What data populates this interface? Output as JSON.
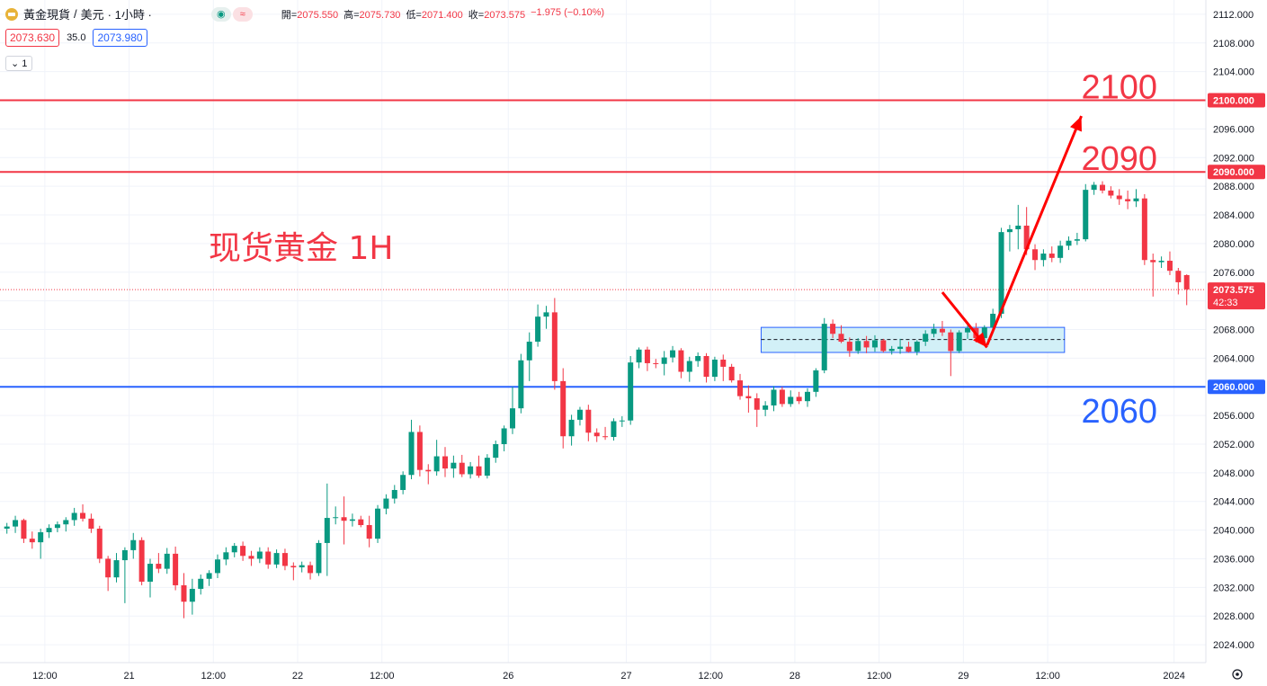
{
  "header": {
    "symbol": "黃金現貨",
    "separator": "/",
    "currency": "美元",
    "timeframe": "· 1小時 ·",
    "toggle1": "◉",
    "toggle2": "≈",
    "ohlc": {
      "open_label": "開=",
      "open": "2075.550",
      "high_label": "高=",
      "high": "2075.730",
      "low_label": "低=",
      "low": "2071.400",
      "close_label": "收=",
      "close": "2073.575",
      "change": "−1.975 (−0.10%)"
    },
    "bid": "2073.630",
    "spread": "35.0",
    "ask": "2073.980",
    "indicator_toggle": "⌄ 1"
  },
  "annotation": {
    "title": "现货黄金 1H",
    "label_2100": "2100",
    "label_2090": "2090",
    "label_2060": "2060"
  },
  "colors": {
    "up": "#089981",
    "down": "#f23645",
    "resistance": "#f23645",
    "support": "#2962ff",
    "zone_fill": "#cdeef6",
    "zone_border": "#2962ff",
    "arrow": "#ff0000"
  },
  "chart_data": {
    "type": "candlestick",
    "title": "现货黄金 1H",
    "y_axis": {
      "range": [
        2021.5,
        2114.0
      ],
      "ticks": [
        "2112.000",
        "2108.000",
        "2104.000",
        "2100.000",
        "2096.000",
        "2092.000",
        "2088.000",
        "2084.000",
        "2080.000",
        "2076.000",
        "2072.000",
        "2068.000",
        "2064.000",
        "2060.000",
        "2056.000",
        "2052.000",
        "2048.000",
        "2044.000",
        "2040.000",
        "2036.000",
        "2032.000",
        "2028.000",
        "2024.000"
      ]
    },
    "x_axis": {
      "labels": [
        "12:00",
        "21",
        "12:00",
        "22",
        "12:00",
        "26",
        "27",
        "12:00",
        "28",
        "12:00",
        "29",
        "12:00",
        "2024"
      ],
      "label_slots": [
        5,
        15,
        25,
        35,
        45,
        60,
        74,
        84,
        94,
        104,
        114,
        124,
        139
      ],
      "slot_range": [
        0,
        148
      ]
    },
    "horizontal_lines": [
      {
        "value": 2100.0,
        "label": "2100.000",
        "color": "#f23645"
      },
      {
        "value": 2090.0,
        "label": "2090.000",
        "color": "#f23645"
      },
      {
        "value": 2060.0,
        "label": "2060.000",
        "color": "#2962ff"
      }
    ],
    "last_price": {
      "value": 2073.575,
      "label": "2073.575",
      "countdown": "42:33"
    },
    "zone": {
      "top": 2068.3,
      "bottom": 2064.8,
      "mid": 2066.6,
      "slot_start": 90,
      "slot_end": 126
    },
    "projection_arrows": [
      {
        "from": [
          111.5,
          2073.2
        ],
        "to": [
          116.8,
          2065.5
        ]
      },
      {
        "from": [
          116.8,
          2065.8
        ],
        "to": [
          128,
          2097.8
        ]
      }
    ],
    "candles": [
      {
        "o": 2040.2,
        "h": 2041.0,
        "l": 2039.5,
        "c": 2040.5
      },
      {
        "o": 2040.5,
        "h": 2042.0,
        "l": 2039.6,
        "c": 2041.4
      },
      {
        "o": 2041.4,
        "h": 2041.6,
        "l": 2038.2,
        "c": 2038.8
      },
      {
        "o": 2038.8,
        "h": 2039.8,
        "l": 2037.4,
        "c": 2038.3
      },
      {
        "o": 2038.3,
        "h": 2040.2,
        "l": 2036.0,
        "c": 2039.7
      },
      {
        "o": 2039.7,
        "h": 2040.8,
        "l": 2038.9,
        "c": 2040.3
      },
      {
        "o": 2040.3,
        "h": 2041.2,
        "l": 2039.7,
        "c": 2040.8
      },
      {
        "o": 2040.8,
        "h": 2041.8,
        "l": 2039.8,
        "c": 2041.4
      },
      {
        "o": 2041.4,
        "h": 2043.1,
        "l": 2040.6,
        "c": 2042.4
      },
      {
        "o": 2042.4,
        "h": 2043.6,
        "l": 2041.2,
        "c": 2041.6
      },
      {
        "o": 2041.6,
        "h": 2042.3,
        "l": 2039.6,
        "c": 2040.2
      },
      {
        "o": 2040.2,
        "h": 2040.6,
        "l": 2035.4,
        "c": 2036.0
      },
      {
        "o": 2036.0,
        "h": 2036.4,
        "l": 2031.5,
        "c": 2033.4
      },
      {
        "o": 2033.4,
        "h": 2036.8,
        "l": 2032.7,
        "c": 2035.8
      },
      {
        "o": 2035.8,
        "h": 2037.6,
        "l": 2029.8,
        "c": 2037.2
      },
      {
        "o": 2037.2,
        "h": 2039.6,
        "l": 2036.0,
        "c": 2038.6
      },
      {
        "o": 2038.6,
        "h": 2039.0,
        "l": 2032.3,
        "c": 2032.8
      },
      {
        "o": 2032.8,
        "h": 2036.0,
        "l": 2030.6,
        "c": 2035.3
      },
      {
        "o": 2035.3,
        "h": 2036.8,
        "l": 2034.0,
        "c": 2034.6
      },
      {
        "o": 2034.6,
        "h": 2037.5,
        "l": 2033.9,
        "c": 2036.7
      },
      {
        "o": 2036.7,
        "h": 2037.7,
        "l": 2031.6,
        "c": 2032.3
      },
      {
        "o": 2032.3,
        "h": 2034.0,
        "l": 2027.7,
        "c": 2030.0
      },
      {
        "o": 2030.0,
        "h": 2033.2,
        "l": 2028.2,
        "c": 2031.8
      },
      {
        "o": 2031.8,
        "h": 2033.8,
        "l": 2031.0,
        "c": 2033.2
      },
      {
        "o": 2033.2,
        "h": 2034.4,
        "l": 2032.2,
        "c": 2034.0
      },
      {
        "o": 2034.0,
        "h": 2036.6,
        "l": 2033.3,
        "c": 2035.9
      },
      {
        "o": 2035.9,
        "h": 2037.6,
        "l": 2035.1,
        "c": 2036.9
      },
      {
        "o": 2036.9,
        "h": 2038.2,
        "l": 2036.2,
        "c": 2037.8
      },
      {
        "o": 2037.8,
        "h": 2038.4,
        "l": 2035.7,
        "c": 2036.4
      },
      {
        "o": 2036.4,
        "h": 2037.1,
        "l": 2035.0,
        "c": 2036.0
      },
      {
        "o": 2036.0,
        "h": 2037.6,
        "l": 2035.4,
        "c": 2037.0
      },
      {
        "o": 2037.0,
        "h": 2037.6,
        "l": 2034.6,
        "c": 2035.2
      },
      {
        "o": 2035.2,
        "h": 2037.3,
        "l": 2034.7,
        "c": 2036.8
      },
      {
        "o": 2036.8,
        "h": 2037.4,
        "l": 2034.4,
        "c": 2035.0
      },
      {
        "o": 2035.0,
        "h": 2035.5,
        "l": 2033.0,
        "c": 2034.8
      },
      {
        "o": 2034.8,
        "h": 2035.6,
        "l": 2034.1,
        "c": 2035.1
      },
      {
        "o": 2035.1,
        "h": 2035.6,
        "l": 2033.1,
        "c": 2034.0
      },
      {
        "o": 2034.0,
        "h": 2038.6,
        "l": 2033.6,
        "c": 2038.2
      },
      {
        "o": 2038.2,
        "h": 2046.5,
        "l": 2033.6,
        "c": 2041.7
      },
      {
        "o": 2041.7,
        "h": 2043.3,
        "l": 2040.8,
        "c": 2041.8
      },
      {
        "o": 2041.8,
        "h": 2044.7,
        "l": 2038.0,
        "c": 2041.3
      },
      {
        "o": 2041.3,
        "h": 2042.3,
        "l": 2040.5,
        "c": 2041.5
      },
      {
        "o": 2041.5,
        "h": 2042.0,
        "l": 2040.4,
        "c": 2040.7
      },
      {
        "o": 2040.7,
        "h": 2042.0,
        "l": 2037.6,
        "c": 2038.8
      },
      {
        "o": 2038.8,
        "h": 2043.5,
        "l": 2038.2,
        "c": 2043.0
      },
      {
        "o": 2043.0,
        "h": 2045.0,
        "l": 2042.2,
        "c": 2044.4
      },
      {
        "o": 2044.4,
        "h": 2046.3,
        "l": 2043.7,
        "c": 2045.6
      },
      {
        "o": 2045.6,
        "h": 2048.2,
        "l": 2045.0,
        "c": 2047.7
      },
      {
        "o": 2047.7,
        "h": 2055.4,
        "l": 2047.1,
        "c": 2053.7
      },
      {
        "o": 2053.7,
        "h": 2054.6,
        "l": 2047.5,
        "c": 2048.4
      },
      {
        "o": 2048.4,
        "h": 2049.2,
        "l": 2046.4,
        "c": 2048.2
      },
      {
        "o": 2048.2,
        "h": 2052.6,
        "l": 2047.6,
        "c": 2050.3
      },
      {
        "o": 2050.3,
        "h": 2051.6,
        "l": 2047.4,
        "c": 2048.6
      },
      {
        "o": 2048.6,
        "h": 2050.4,
        "l": 2047.3,
        "c": 2049.4
      },
      {
        "o": 2049.4,
        "h": 2050.5,
        "l": 2047.4,
        "c": 2047.8
      },
      {
        "o": 2047.8,
        "h": 2049.5,
        "l": 2047.2,
        "c": 2048.9
      },
      {
        "o": 2048.9,
        "h": 2050.4,
        "l": 2047.3,
        "c": 2047.6
      },
      {
        "o": 2047.6,
        "h": 2050.6,
        "l": 2047.2,
        "c": 2050.1
      },
      {
        "o": 2050.1,
        "h": 2052.5,
        "l": 2049.4,
        "c": 2052.0
      },
      {
        "o": 2052.0,
        "h": 2054.6,
        "l": 2051.0,
        "c": 2054.2
      },
      {
        "o": 2054.2,
        "h": 2060.0,
        "l": 2053.4,
        "c": 2057.0
      },
      {
        "o": 2057.0,
        "h": 2064.6,
        "l": 2056.3,
        "c": 2063.7
      },
      {
        "o": 2063.7,
        "h": 2067.6,
        "l": 2060.8,
        "c": 2066.3
      },
      {
        "o": 2066.3,
        "h": 2071.5,
        "l": 2065.6,
        "c": 2069.8
      },
      {
        "o": 2069.8,
        "h": 2071.3,
        "l": 2068.1,
        "c": 2070.4
      },
      {
        "o": 2070.4,
        "h": 2072.4,
        "l": 2059.6,
        "c": 2060.8
      },
      {
        "o": 2060.8,
        "h": 2062.6,
        "l": 2051.4,
        "c": 2053.1
      },
      {
        "o": 2053.1,
        "h": 2056.1,
        "l": 2051.8,
        "c": 2055.4
      },
      {
        "o": 2055.4,
        "h": 2057.2,
        "l": 2054.6,
        "c": 2056.8
      },
      {
        "o": 2056.8,
        "h": 2057.5,
        "l": 2052.4,
        "c": 2053.6
      },
      {
        "o": 2053.6,
        "h": 2054.2,
        "l": 2052.3,
        "c": 2053.1
      },
      {
        "o": 2053.1,
        "h": 2054.4,
        "l": 2052.6,
        "c": 2053.0
      },
      {
        "o": 2053.0,
        "h": 2055.6,
        "l": 2052.5,
        "c": 2055.2
      },
      {
        "o": 2055.2,
        "h": 2055.9,
        "l": 2054.4,
        "c": 2055.3
      },
      {
        "o": 2055.3,
        "h": 2064.3,
        "l": 2054.7,
        "c": 2063.4
      },
      {
        "o": 2063.4,
        "h": 2065.5,
        "l": 2062.6,
        "c": 2065.2
      },
      {
        "o": 2065.2,
        "h": 2065.6,
        "l": 2062.2,
        "c": 2063.3
      },
      {
        "o": 2063.3,
        "h": 2063.9,
        "l": 2062.6,
        "c": 2063.2
      },
      {
        "o": 2063.2,
        "h": 2065.0,
        "l": 2061.6,
        "c": 2064.1
      },
      {
        "o": 2064.1,
        "h": 2065.7,
        "l": 2063.4,
        "c": 2065.1
      },
      {
        "o": 2065.1,
        "h": 2065.4,
        "l": 2061.2,
        "c": 2062.1
      },
      {
        "o": 2062.1,
        "h": 2064.2,
        "l": 2060.7,
        "c": 2063.6
      },
      {
        "o": 2063.6,
        "h": 2064.8,
        "l": 2062.8,
        "c": 2064.3
      },
      {
        "o": 2064.3,
        "h": 2064.7,
        "l": 2060.6,
        "c": 2061.4
      },
      {
        "o": 2061.4,
        "h": 2064.2,
        "l": 2060.8,
        "c": 2063.8
      },
      {
        "o": 2063.8,
        "h": 2064.5,
        "l": 2060.8,
        "c": 2062.8
      },
      {
        "o": 2062.8,
        "h": 2063.2,
        "l": 2060.6,
        "c": 2060.9
      },
      {
        "o": 2060.9,
        "h": 2061.8,
        "l": 2058.2,
        "c": 2058.7
      },
      {
        "o": 2058.7,
        "h": 2060.2,
        "l": 2056.4,
        "c": 2058.4
      },
      {
        "o": 2058.4,
        "h": 2059.1,
        "l": 2054.4,
        "c": 2056.8
      },
      {
        "o": 2056.8,
        "h": 2058.0,
        "l": 2055.9,
        "c": 2057.4
      },
      {
        "o": 2057.4,
        "h": 2060.1,
        "l": 2056.6,
        "c": 2059.6
      },
      {
        "o": 2059.6,
        "h": 2060.0,
        "l": 2057.2,
        "c": 2057.6
      },
      {
        "o": 2057.6,
        "h": 2059.5,
        "l": 2057.2,
        "c": 2058.6
      },
      {
        "o": 2058.6,
        "h": 2059.3,
        "l": 2057.6,
        "c": 2058.0
      },
      {
        "o": 2058.0,
        "h": 2059.8,
        "l": 2057.2,
        "c": 2059.3
      },
      {
        "o": 2059.3,
        "h": 2062.6,
        "l": 2058.6,
        "c": 2062.3
      },
      {
        "o": 2062.3,
        "h": 2069.6,
        "l": 2061.9,
        "c": 2068.8
      },
      {
        "o": 2068.8,
        "h": 2069.4,
        "l": 2066.8,
        "c": 2067.4
      },
      {
        "o": 2067.4,
        "h": 2068.6,
        "l": 2066.1,
        "c": 2066.3
      },
      {
        "o": 2066.3,
        "h": 2066.9,
        "l": 2064.2,
        "c": 2065.0
      },
      {
        "o": 2065.0,
        "h": 2066.8,
        "l": 2064.6,
        "c": 2066.4
      },
      {
        "o": 2066.4,
        "h": 2067.1,
        "l": 2064.7,
        "c": 2065.5
      },
      {
        "o": 2065.5,
        "h": 2067.2,
        "l": 2064.9,
        "c": 2066.5
      },
      {
        "o": 2066.5,
        "h": 2066.7,
        "l": 2064.8,
        "c": 2065.0
      },
      {
        "o": 2065.0,
        "h": 2065.7,
        "l": 2064.5,
        "c": 2065.3
      },
      {
        "o": 2065.3,
        "h": 2066.7,
        "l": 2064.6,
        "c": 2065.6
      },
      {
        "o": 2065.6,
        "h": 2066.3,
        "l": 2064.8,
        "c": 2064.9
      },
      {
        "o": 2064.9,
        "h": 2066.5,
        "l": 2064.4,
        "c": 2066.3
      },
      {
        "o": 2066.3,
        "h": 2067.9,
        "l": 2065.7,
        "c": 2067.4
      },
      {
        "o": 2067.4,
        "h": 2068.8,
        "l": 2066.9,
        "c": 2068.1
      },
      {
        "o": 2068.1,
        "h": 2069.2,
        "l": 2067.1,
        "c": 2067.6
      },
      {
        "o": 2067.6,
        "h": 2068.0,
        "l": 2061.5,
        "c": 2065.0
      },
      {
        "o": 2065.0,
        "h": 2067.9,
        "l": 2064.7,
        "c": 2067.6
      },
      {
        "o": 2067.6,
        "h": 2068.9,
        "l": 2066.7,
        "c": 2068.2
      },
      {
        "o": 2068.2,
        "h": 2068.9,
        "l": 2066.2,
        "c": 2066.8
      },
      {
        "o": 2066.8,
        "h": 2068.6,
        "l": 2066.1,
        "c": 2068.3
      },
      {
        "o": 2068.3,
        "h": 2070.9,
        "l": 2067.8,
        "c": 2070.2
      },
      {
        "o": 2070.2,
        "h": 2082.2,
        "l": 2069.6,
        "c": 2081.6
      },
      {
        "o": 2081.6,
        "h": 2082.6,
        "l": 2078.9,
        "c": 2082.0
      },
      {
        "o": 2082.0,
        "h": 2085.4,
        "l": 2079.2,
        "c": 2082.5
      },
      {
        "o": 2082.5,
        "h": 2085.1,
        "l": 2078.4,
        "c": 2079.2
      },
      {
        "o": 2079.2,
        "h": 2079.9,
        "l": 2076.3,
        "c": 2077.7
      },
      {
        "o": 2077.7,
        "h": 2079.2,
        "l": 2076.8,
        "c": 2078.6
      },
      {
        "o": 2078.6,
        "h": 2079.6,
        "l": 2077.4,
        "c": 2078.0
      },
      {
        "o": 2078.0,
        "h": 2080.4,
        "l": 2077.3,
        "c": 2079.7
      },
      {
        "o": 2079.7,
        "h": 2081.0,
        "l": 2079.1,
        "c": 2080.4
      },
      {
        "o": 2080.4,
        "h": 2081.5,
        "l": 2079.8,
        "c": 2080.6
      },
      {
        "o": 2080.6,
        "h": 2088.3,
        "l": 2080.3,
        "c": 2087.5
      },
      {
        "o": 2087.5,
        "h": 2088.6,
        "l": 2086.8,
        "c": 2088.2
      },
      {
        "o": 2088.2,
        "h": 2088.7,
        "l": 2087.0,
        "c": 2087.4
      },
      {
        "o": 2087.4,
        "h": 2088.0,
        "l": 2086.3,
        "c": 2086.7
      },
      {
        "o": 2086.7,
        "h": 2087.6,
        "l": 2085.4,
        "c": 2086.2
      },
      {
        "o": 2086.2,
        "h": 2087.4,
        "l": 2084.8,
        "c": 2085.9
      },
      {
        "o": 2085.9,
        "h": 2087.6,
        "l": 2085.1,
        "c": 2086.3
      },
      {
        "o": 2086.3,
        "h": 2086.9,
        "l": 2077.0,
        "c": 2077.7
      },
      {
        "o": 2077.7,
        "h": 2078.6,
        "l": 2072.6,
        "c": 2077.4
      },
      {
        "o": 2077.4,
        "h": 2078.2,
        "l": 2076.6,
        "c": 2077.6
      },
      {
        "o": 2077.6,
        "h": 2078.9,
        "l": 2075.6,
        "c": 2076.2
      },
      {
        "o": 2076.2,
        "h": 2076.6,
        "l": 2072.9,
        "c": 2074.6
      },
      {
        "o": 2075.6,
        "h": 2075.7,
        "l": 2071.4,
        "c": 2073.6
      }
    ]
  }
}
